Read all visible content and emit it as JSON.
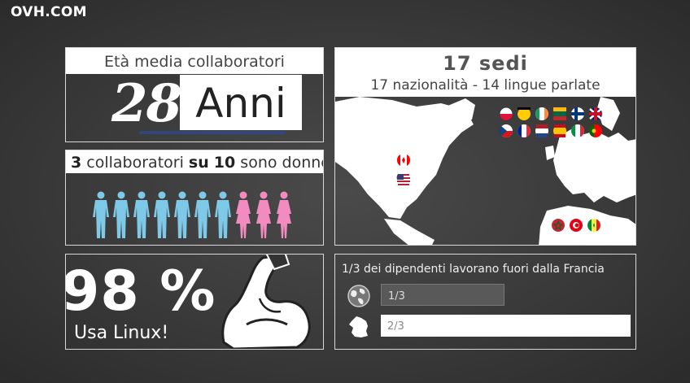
{
  "brand": "OVH.COM",
  "age": {
    "title": "Età media collaboratori",
    "number": "28",
    "unit": "Anni"
  },
  "women": {
    "count": "3",
    "text1": "collaboratori",
    "su": "su",
    "total": "10",
    "text2": "sono donne",
    "men_count": 7,
    "women_count": 3,
    "men_color": "#7ec8e8",
    "women_color": "#f28cc0"
  },
  "linux": {
    "percent": "98 %",
    "label": "Usa Linux!"
  },
  "sedi": {
    "title": "17 sedi",
    "subtitle": "17 nazionalità - 14 lingue parlate",
    "flags_europe": [
      "poland-flag",
      "germany-flag",
      "ireland-flag",
      "lithuania-flag",
      "finland-flag",
      "uk-flag",
      "czech-flag",
      "france-flag",
      "netherlands-flag",
      "spain-flag",
      "italy-flag",
      "portugal-flag"
    ],
    "flags_america": [
      "canada-flag",
      "usa-flag"
    ],
    "flags_africa": [
      "morocco-flag",
      "tunisia-flag",
      "senegal-flag"
    ]
  },
  "abroad": {
    "title": "1/3 dei dipendenti lavorano fuori dalla Francia",
    "bar1_label": "1/3",
    "bar2_label": "2/3"
  }
}
